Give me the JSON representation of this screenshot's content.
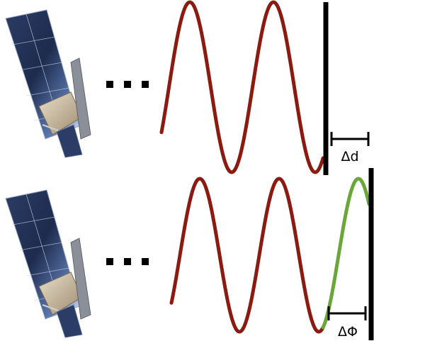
{
  "colors": {
    "wave": "#8b1a10",
    "phase_segment": "#6aa63a",
    "reflector": "#000000",
    "panel_dark": "#1f2f52",
    "panel_mid": "#3a5688",
    "panel_light": "#b9c3d6",
    "body_gold": "#c9b79a"
  },
  "icons": {
    "satellite": "satellite-icon",
    "ellipsis": "ellipsis-icon"
  },
  "labels": {
    "top": "Δd",
    "bottom": "ΔΦ"
  }
}
